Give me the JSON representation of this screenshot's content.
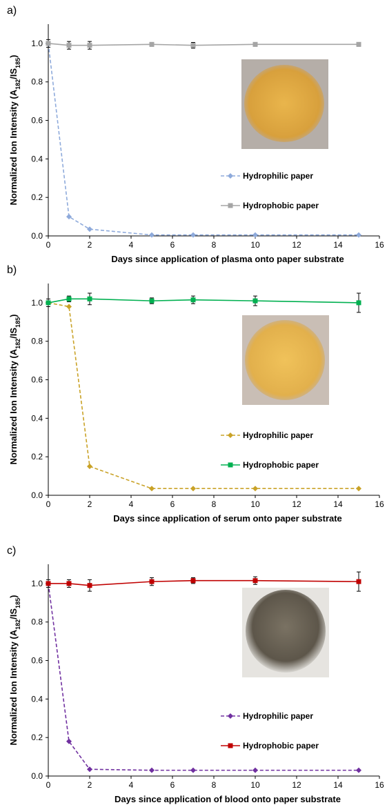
{
  "chart_data": [
    {
      "type": "line",
      "label": "a)",
      "y_label": [
        "Normalized Ion Intensity (A",
        "182",
        "/IS",
        "185",
        ")"
      ],
      "x_label": "Days since application of plasma onto paper substrate",
      "x": [
        0,
        1,
        2,
        5,
        7,
        10,
        15
      ],
      "series": [
        {
          "name": "Hydrophilic paper",
          "color": "#8eaadb",
          "dashed": true,
          "marker": "diamond",
          "values": [
            1.0,
            0.1,
            0.035,
            0.005,
            0.005,
            0.005,
            0.005
          ]
        },
        {
          "name": "Hydrophobic paper",
          "color": "#a5a5a5",
          "dashed": false,
          "marker": "square",
          "values": [
            1.0,
            0.99,
            0.99,
            0.995,
            0.99,
            0.995,
            0.995
          ],
          "errors": [
            0.02,
            0.02,
            0.02,
            0.01,
            0.015,
            0.01,
            0.01
          ]
        }
      ],
      "xlim": [
        0,
        16
      ],
      "xticks": [
        0,
        2,
        4,
        6,
        8,
        10,
        12,
        14,
        16
      ],
      "ylim": [
        0,
        1.1
      ],
      "yticks": [
        {
          "value": 0,
          "label": "0.0"
        },
        {
          "value": 0.2,
          "label": "0.2"
        },
        {
          "value": 0.4,
          "label": "0.4"
        },
        {
          "value": 0.6,
          "label": "0.6"
        },
        {
          "value": 0.8,
          "label": "0.8"
        },
        {
          "value": 1,
          "label": "1.0"
        }
      ]
    },
    {
      "type": "line",
      "label": "b)",
      "y_label": [
        "Normalized Ion Intensity (A",
        "182",
        "/IS",
        "185",
        ")"
      ],
      "x_label": "Days since application of serum onto paper substrate",
      "x": [
        0,
        1,
        2,
        5,
        7,
        10,
        15
      ],
      "series": [
        {
          "name": "Hydrophilic paper",
          "color": "#c9a227",
          "dashed": true,
          "marker": "diamond",
          "values": [
            1.0,
            0.98,
            0.15,
            0.035,
            0.035,
            0.035,
            0.035
          ]
        },
        {
          "name": "Hydrophobic paper",
          "color": "#00b050",
          "dashed": false,
          "marker": "square",
          "values": [
            1.0,
            1.02,
            1.02,
            1.01,
            1.015,
            1.01,
            1.0
          ],
          "errors": [
            0.02,
            0.015,
            0.03,
            0.015,
            0.02,
            0.025,
            0.05
          ]
        }
      ],
      "xlim": [
        0,
        16
      ],
      "xticks": [
        0,
        2,
        4,
        6,
        8,
        10,
        12,
        14,
        16
      ],
      "ylim": [
        0,
        1.1
      ],
      "yticks": [
        {
          "value": 0,
          "label": "0.0"
        },
        {
          "value": 0.2,
          "label": "0.2"
        },
        {
          "value": 0.4,
          "label": "0.4"
        },
        {
          "value": 0.6,
          "label": "0.6"
        },
        {
          "value": 0.8,
          "label": "0.8"
        },
        {
          "value": 1,
          "label": "1.0"
        }
      ]
    },
    {
      "type": "line",
      "label": "c)",
      "y_label": [
        "Normalized Ion Intensity (A",
        "182",
        "/IS",
        "185",
        ")"
      ],
      "x_label": "Days since application of blood onto paper substrate",
      "x": [
        0,
        1,
        2,
        5,
        7,
        10,
        15
      ],
      "series": [
        {
          "name": "Hydrophilic paper",
          "color": "#7030a0",
          "dashed": true,
          "marker": "diamond",
          "values": [
            1.0,
            0.18,
            0.035,
            0.03,
            0.03,
            0.03,
            0.03
          ]
        },
        {
          "name": "Hydrophobic paper",
          "color": "#c00000",
          "dashed": false,
          "marker": "square",
          "values": [
            1.0,
            1.0,
            0.99,
            1.01,
            1.015,
            1.015,
            1.01
          ],
          "errors": [
            0.02,
            0.02,
            0.03,
            0.02,
            0.015,
            0.02,
            0.05
          ]
        }
      ],
      "xlim": [
        0,
        16
      ],
      "xticks": [
        0,
        2,
        4,
        6,
        8,
        10,
        12,
        14,
        16
      ],
      "ylim": [
        0,
        1.1
      ],
      "yticks": [
        {
          "value": 0,
          "label": "0.0"
        },
        {
          "value": 0.2,
          "label": "0.2"
        },
        {
          "value": 0.4,
          "label": "0.4"
        },
        {
          "value": 0.6,
          "label": "0.6"
        },
        {
          "value": 0.8,
          "label": "0.8"
        },
        {
          "value": 1,
          "label": "1.0"
        }
      ]
    }
  ]
}
